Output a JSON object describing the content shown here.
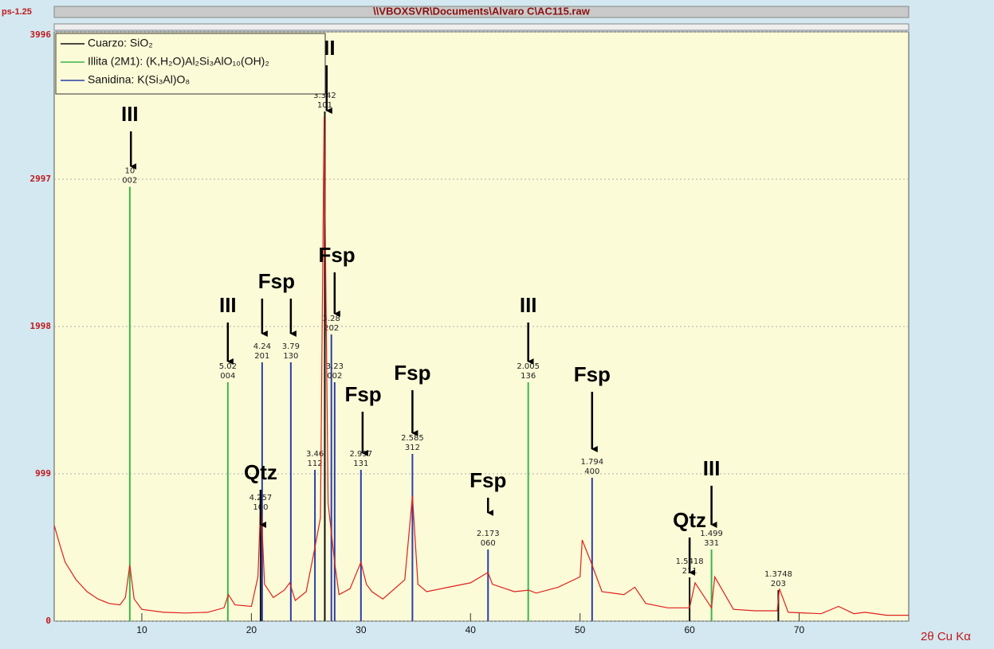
{
  "chart_data": {
    "type": "xrd",
    "title": "\\\\VBOXSVR\\Documents\\Alvaro C\\AC115.raw",
    "y_corner_label": "ps-1.25",
    "xlabel": "2θ Cu Kα",
    "xlim": [
      2,
      80
    ],
    "ylim": [
      0,
      3996
    ],
    "xticks": [
      10,
      20,
      30,
      40,
      50,
      60,
      70
    ],
    "yticks": [
      0,
      999,
      1998,
      2997,
      3996
    ],
    "pattern": {
      "color": "#e0201c",
      "x": [
        2,
        2.5,
        3,
        4,
        5,
        6,
        7,
        8,
        8.5,
        8.9,
        9.3,
        10,
        12,
        14,
        16,
        17.5,
        17.9,
        18.5,
        20,
        20.6,
        20.86,
        21.2,
        22,
        23,
        23.5,
        24,
        25,
        25.8,
        26.3,
        26.64,
        27,
        27.6,
        28,
        29,
        30,
        30.5,
        31,
        32,
        34,
        34.7,
        35.2,
        36,
        38,
        40,
        41.6,
        42,
        44,
        45.3,
        46,
        48,
        50,
        50.2,
        51,
        52,
        54,
        55,
        56,
        58,
        60,
        60.5,
        62,
        62.3,
        64,
        66,
        68,
        68.2,
        69,
        72,
        73.6,
        75,
        76,
        78,
        80
      ],
      "values": [
        650,
        520,
        400,
        280,
        200,
        150,
        120,
        110,
        160,
        380,
        150,
        80,
        60,
        55,
        60,
        90,
        180,
        110,
        100,
        300,
        830,
        250,
        160,
        210,
        260,
        140,
        200,
        500,
        700,
        3420,
        800,
        400,
        180,
        220,
        400,
        250,
        200,
        150,
        280,
        850,
        250,
        200,
        230,
        260,
        330,
        250,
        200,
        210,
        190,
        230,
        300,
        550,
        400,
        200,
        180,
        230,
        120,
        90,
        90,
        260,
        90,
        300,
        80,
        70,
        70,
        220,
        60,
        50,
        100,
        50,
        60,
        40,
        40
      ]
    },
    "series": [
      {
        "name": "Cuarzo: SiO₂",
        "color": "#111111",
        "x": [
          20.84,
          26.7,
          60.0,
          68.1
        ],
        "values": [
          729,
          3456,
          297,
          210
        ],
        "labels": [
          [
            "4.257",
            "100"
          ],
          [
            "3.342",
            "101"
          ],
          [
            "1.5418",
            "211"
          ],
          [
            "1.3748",
            "203"
          ]
        ]
      },
      {
        "name": "Illita (2M1): (K,H₂O)Al₂Si₃AlO₁₀(OH)₂",
        "color": "#3cb54a",
        "x": [
          8.9,
          17.85,
          45.27,
          62.0
        ],
        "values": [
          2945,
          1620,
          1620,
          486
        ],
        "labels": [
          [
            "10",
            "002"
          ],
          [
            "5.02",
            "004"
          ],
          [
            "2.005",
            "136"
          ],
          [
            "1.499",
            "331"
          ]
        ]
      },
      {
        "name": "Sanidina: K(Si₃Al)O₈",
        "color": "#2b3fa8",
        "x": [
          20.98,
          23.6,
          25.8,
          27.3,
          27.6,
          30.0,
          34.7,
          41.6,
          51.1
        ],
        "values": [
          1755,
          1755,
          1026,
          1944,
          1620,
          1026,
          1134,
          486,
          972
        ],
        "labels": [
          [
            "4.24",
            "201"
          ],
          [
            "3.79",
            "130"
          ],
          [
            "3.46",
            "112"
          ],
          [
            "3.28",
            "202"
          ],
          [
            "3.23",
            "002"
          ],
          [
            "2.997",
            "131"
          ],
          [
            "2.585",
            "312"
          ],
          [
            "2.173",
            "060"
          ],
          [
            "1.794",
            "400"
          ]
        ]
      }
    ],
    "annotations": [
      {
        "text": "III",
        "x": 8.9,
        "y": 3429,
        "arrows": [
          [
            9.0,
            3078
          ]
        ]
      },
      {
        "text": "III",
        "x": 26.87,
        "y": 3877,
        "arrows": [
          [
            26.87,
            3456
          ]
        ]
      },
      {
        "text": "III",
        "x": 17.85,
        "y": 2133,
        "arrows": [
          [
            17.85,
            1755
          ]
        ]
      },
      {
        "text": "Fsp",
        "x": 22.29,
        "y": 2295,
        "arrows": [
          [
            20.98,
            1944
          ],
          [
            23.6,
            1944
          ]
        ]
      },
      {
        "text": "Fsp",
        "x": 27.8,
        "y": 2473,
        "arrows": [
          [
            27.6,
            2079
          ]
        ]
      },
      {
        "text": "Fsp",
        "x": 30.2,
        "y": 1528,
        "arrows": [
          [
            30.15,
            1134
          ]
        ]
      },
      {
        "text": "Fsp",
        "x": 34.7,
        "y": 1674,
        "arrows": [
          [
            34.7,
            1269
          ]
        ]
      },
      {
        "text": "Fsp",
        "x": 41.6,
        "y": 945,
        "arrows": [
          [
            41.6,
            729
          ]
        ]
      },
      {
        "text": "III",
        "x": 45.27,
        "y": 2133,
        "arrows": [
          [
            45.27,
            1755
          ]
        ]
      },
      {
        "text": "Fsp",
        "x": 51.1,
        "y": 1663,
        "arrows": [
          [
            51.1,
            1161
          ]
        ]
      },
      {
        "text": "Qtz",
        "x": 20.84,
        "y": 999,
        "arrows": [
          [
            20.84,
            648
          ]
        ]
      },
      {
        "text": "Qtz",
        "x": 60.0,
        "y": 675,
        "arrows": [
          [
            60.0,
            324
          ]
        ]
      },
      {
        "text": "III",
        "x": 62.0,
        "y": 1026,
        "arrows": [
          [
            62.0,
            648
          ]
        ]
      }
    ]
  }
}
